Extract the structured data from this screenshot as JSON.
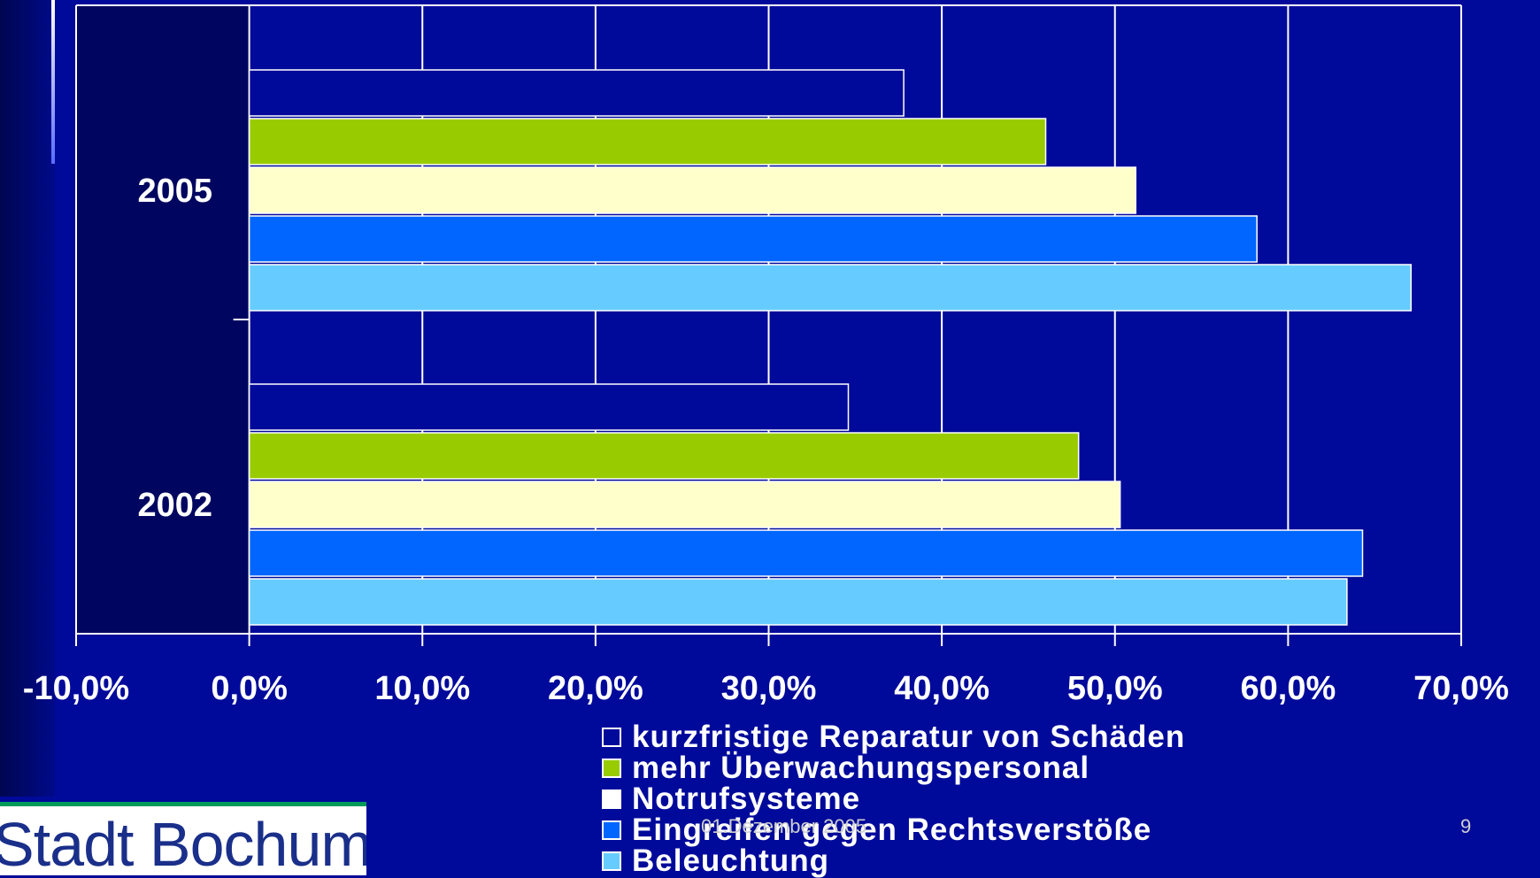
{
  "chart_data": {
    "type": "bar",
    "orientation": "horizontal",
    "categories": [
      "2005",
      "2002"
    ],
    "series": [
      {
        "name": "kurzfristige Reparatur von Schäden",
        "color": "#000a9a",
        "values": [
          37.8,
          34.6
        ]
      },
      {
        "name": "mehr Überwachungspersonal",
        "color": "#99cc00",
        "values": [
          46.0,
          47.9
        ]
      },
      {
        "name": "Notrufsysteme",
        "color": "#ffffcc",
        "values": [
          51.2,
          50.3
        ]
      },
      {
        "name": "Eingreifen gegen Rechtsverstöße",
        "color": "#0066ff",
        "values": [
          58.2,
          64.3
        ]
      },
      {
        "name": "Beleuchtung",
        "color": "#66ccff",
        "values": [
          67.1,
          63.4
        ]
      }
    ],
    "xlim": [
      -10,
      70
    ],
    "xticks": [
      "-10,0%",
      "0,0%",
      "10,0%",
      "20,0%",
      "30,0%",
      "40,0%",
      "50,0%",
      "60,0%",
      "70,0%"
    ],
    "grid": true,
    "legend_position": "bottom-center"
  },
  "legend": {
    "items": [
      {
        "label": "kurzfristige Reparatur von Schäden",
        "color": "#000a9a"
      },
      {
        "label": "mehr Überwachungspersonal",
        "color": "#99cc00"
      },
      {
        "label": "Notrufsysteme",
        "color": "#ffffff"
      },
      {
        "label": "Eingreifen gegen Rechtsverstöße",
        "color": "#0066ff"
      },
      {
        "label": "Beleuchtung",
        "color": "#66ccff"
      }
    ]
  },
  "logo": {
    "text": "Stadt Bochum"
  },
  "footer": {
    "date": "01.Dezember 2005",
    "page": "9"
  }
}
